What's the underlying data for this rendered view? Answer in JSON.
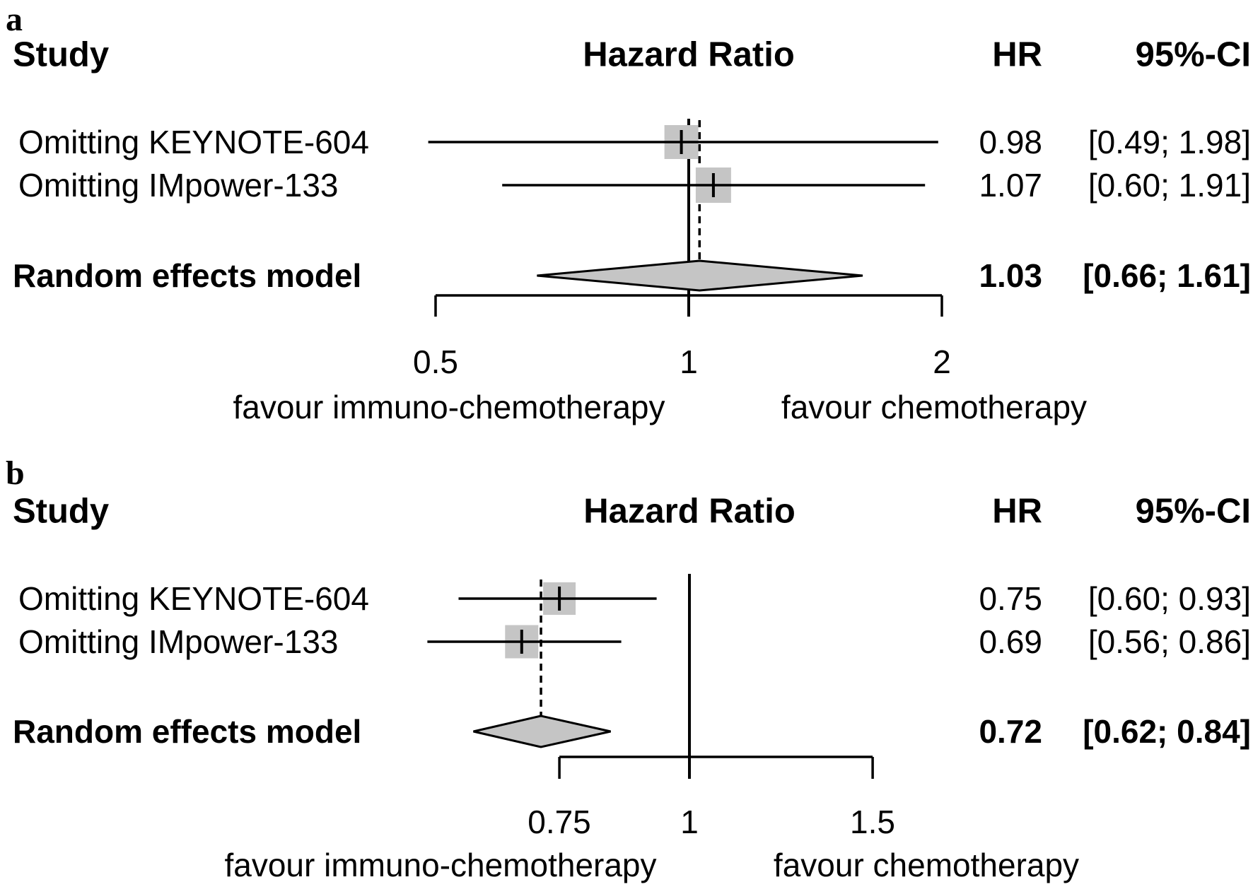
{
  "colors": {
    "marker_fill": "#c5c5c5",
    "line": "#000000",
    "background": "#ffffff"
  },
  "panels": [
    {
      "label": "a",
      "headers": {
        "study": "Study",
        "hazard_ratio": "Hazard Ratio",
        "hr": "HR",
        "ci": "95%-CI"
      },
      "rows": [
        {
          "study": "Omitting KEYNOTE-604",
          "hr": "0.98",
          "ci": "[0.49; 1.98]"
        },
        {
          "study": "Omitting IMpower-133",
          "hr": "1.07",
          "ci": "[0.60; 1.91]"
        }
      ],
      "summary": {
        "study": "Random effects model",
        "hr": "1.03",
        "ci": "[0.66; 1.61]"
      },
      "axis": {
        "tick_labels": [
          "0.5",
          "1",
          "2"
        ],
        "left_label": "favour immuno-chemotherapy",
        "right_label": "favour chemotherapy"
      }
    },
    {
      "label": "b",
      "headers": {
        "study": "Study",
        "hazard_ratio": "Hazard Ratio",
        "hr": "HR",
        "ci": "95%-CI"
      },
      "rows": [
        {
          "study": "Omitting KEYNOTE-604",
          "hr": "0.75",
          "ci": "[0.60; 0.93]"
        },
        {
          "study": "Omitting IMpower-133",
          "hr": "0.69",
          "ci": "[0.56; 0.86]"
        }
      ],
      "summary": {
        "study": "Random effects model",
        "hr": "0.72",
        "ci": "[0.62; 0.84]"
      },
      "axis": {
        "tick_labels": [
          "0.75",
          "1",
          "1.5"
        ],
        "left_label": "favour immuno-chemotherapy",
        "right_label": "favour chemotherapy"
      }
    }
  ],
  "chart_data": [
    {
      "type": "scatter",
      "variant": "forest-plot",
      "panel": "a",
      "title": "Hazard Ratio",
      "x_scale": "log",
      "x_ticks": [
        0.5,
        1,
        2
      ],
      "x_range": [
        0.5,
        2
      ],
      "reference_line": 1,
      "studies": [
        {
          "label": "Omitting KEYNOTE-604",
          "hr": 0.98,
          "ci": [
            0.49,
            1.98
          ]
        },
        {
          "label": "Omitting IMpower-133",
          "hr": 1.07,
          "ci": [
            0.6,
            1.91
          ]
        }
      ],
      "summary": {
        "label": "Random effects model",
        "hr": 1.03,
        "ci": [
          0.66,
          1.61
        ]
      },
      "xlabel_left": "favour immuno-chemotherapy",
      "xlabel_right": "favour chemotherapy",
      "legend": "none",
      "grid": false
    },
    {
      "type": "scatter",
      "variant": "forest-plot",
      "panel": "b",
      "title": "Hazard Ratio",
      "x_scale": "log",
      "x_ticks": [
        0.75,
        1,
        1.5
      ],
      "x_range": [
        0.75,
        1.5
      ],
      "reference_line": 1,
      "studies": [
        {
          "label": "Omitting KEYNOTE-604",
          "hr": 0.75,
          "ci": [
            0.6,
            0.93
          ]
        },
        {
          "label": "Omitting IMpower-133",
          "hr": 0.69,
          "ci": [
            0.56,
            0.86
          ]
        }
      ],
      "summary": {
        "label": "Random effects model",
        "hr": 0.72,
        "ci": [
          0.62,
          0.84
        ]
      },
      "xlabel_left": "favour immuno-chemotherapy",
      "xlabel_right": "favour chemotherapy",
      "legend": "none",
      "grid": false
    }
  ]
}
